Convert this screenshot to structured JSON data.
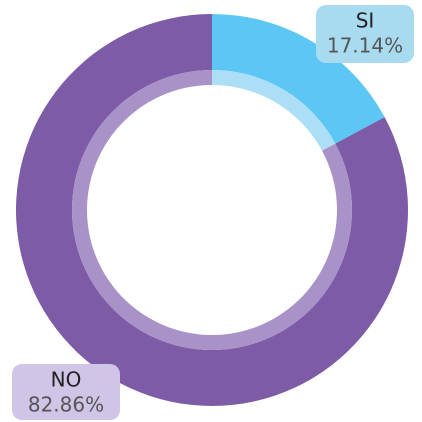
{
  "chart_data": {
    "type": "donut",
    "categories": [
      "SI",
      "NO"
    ],
    "values": [
      17.14,
      82.86
    ],
    "value_labels": [
      "17.14%",
      "82.86%"
    ],
    "colors": [
      "#5cc7f4",
      "#7e5ba6"
    ],
    "light_colors": [
      "#acdff6",
      "#a892c8"
    ],
    "label_colors": [
      "#a9dbf0",
      "#d0c5e6"
    ]
  }
}
